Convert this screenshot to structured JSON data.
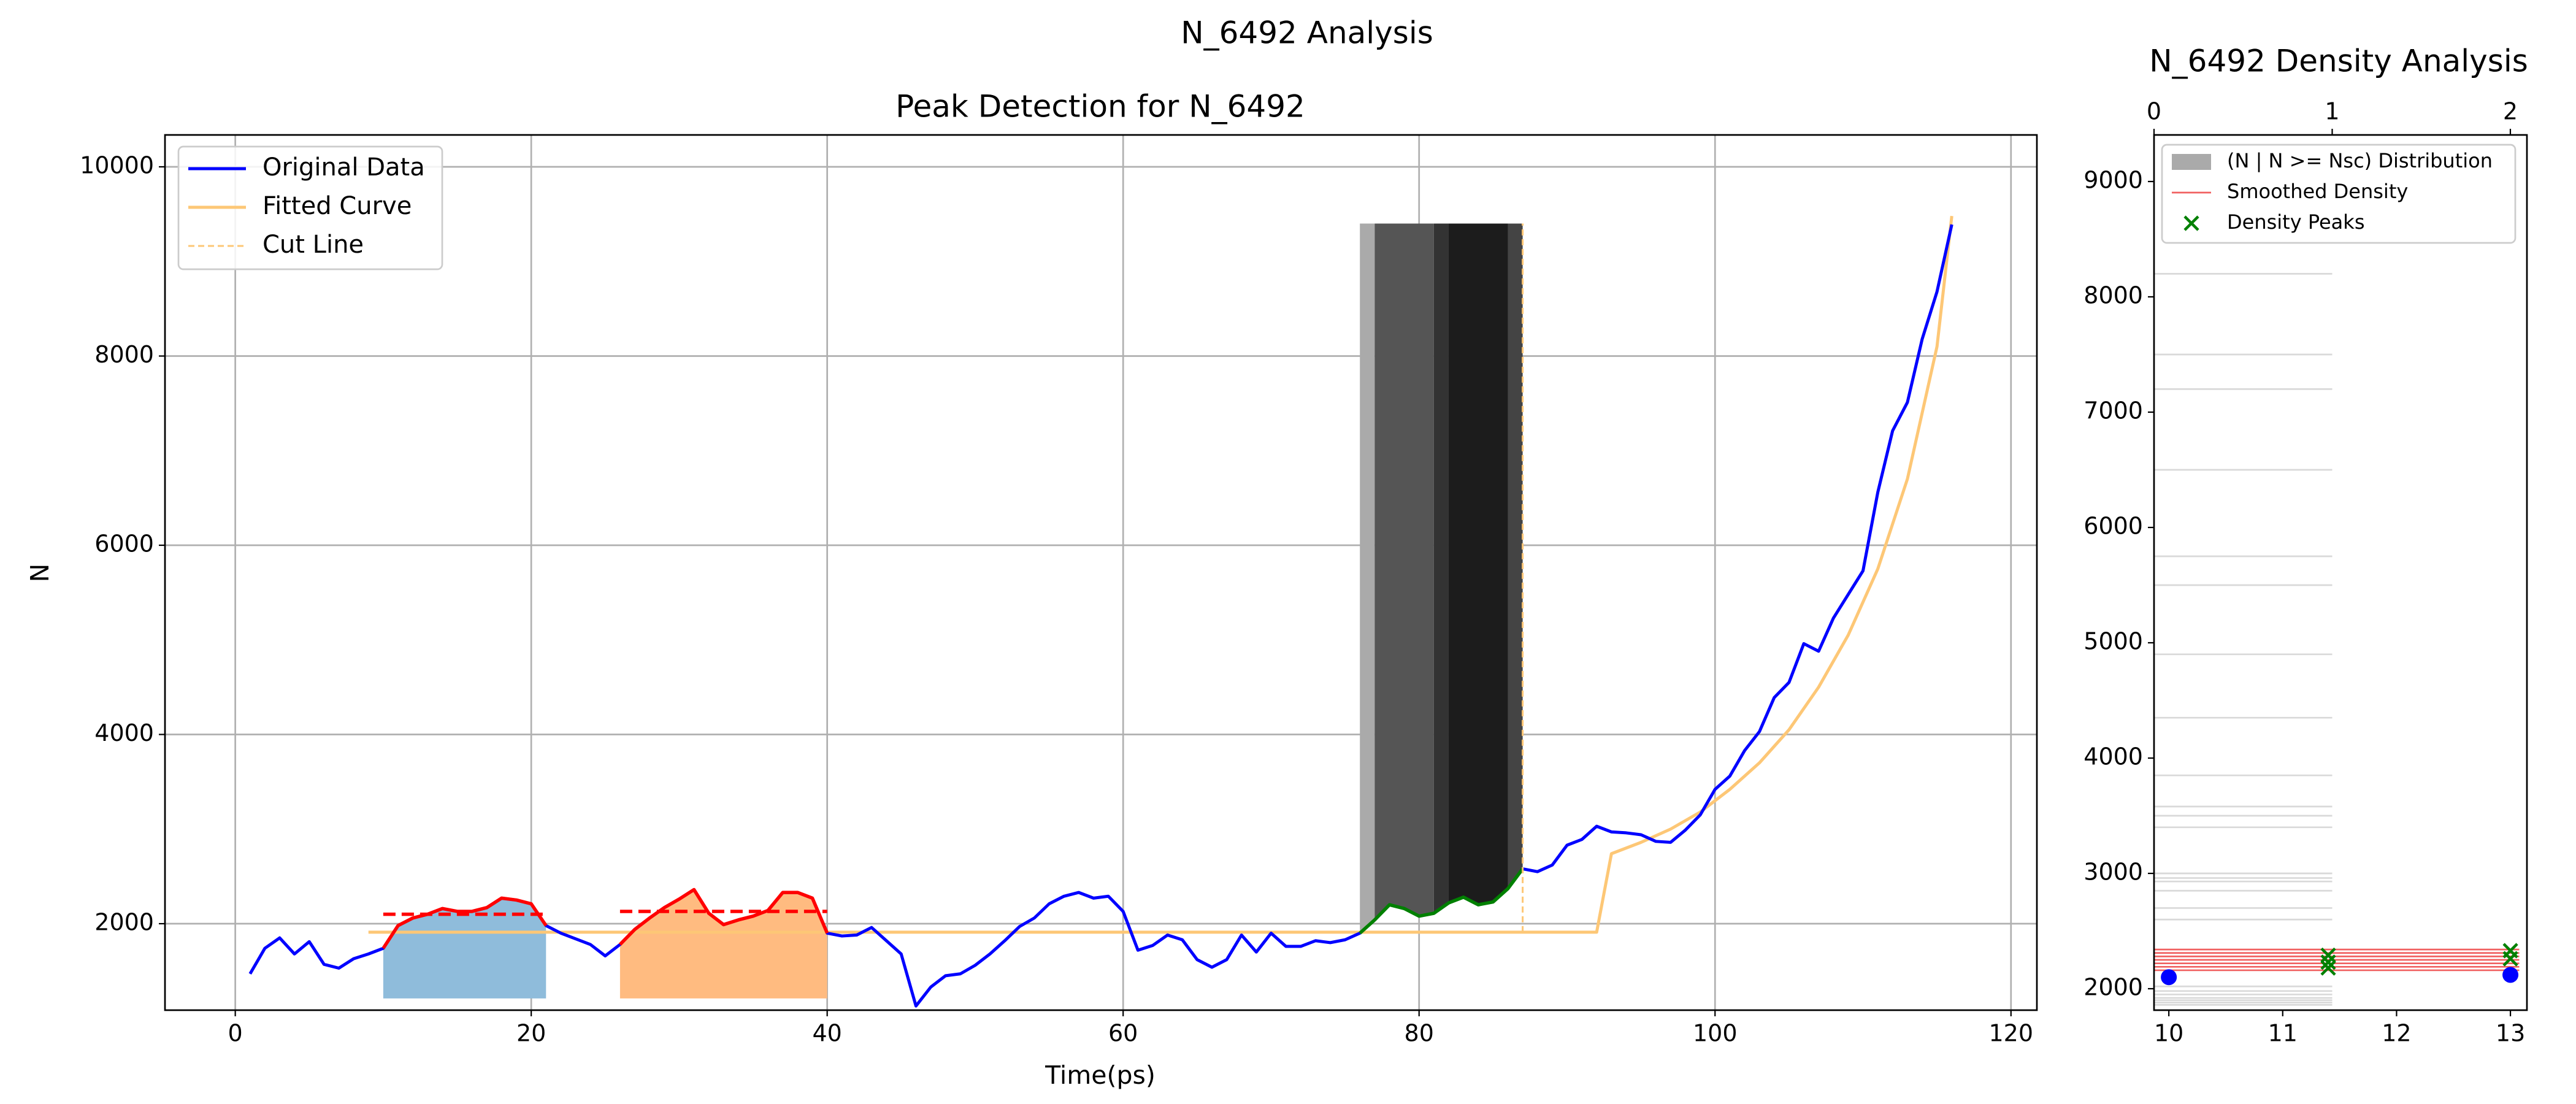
{
  "title": "N_6492 Analysis",
  "chart_data": [
    {
      "type": "line",
      "title": "Peak Detection for N_6492",
      "xlabel": "Time(ps)",
      "ylabel": "N",
      "xlim": [
        -4.75,
        121.75
      ],
      "ylim": [
        1086,
        10337
      ],
      "xticks": [
        0,
        20,
        40,
        60,
        80,
        100,
        120
      ],
      "yticks": [
        2000,
        4000,
        6000,
        8000,
        10000
      ],
      "grid": true,
      "legend": "upper left",
      "series": [
        {
          "name": "Original Data",
          "color": "#0000ff",
          "x": [
            1,
            2,
            3,
            4,
            5,
            6,
            7,
            8,
            9,
            10,
            11,
            12,
            13,
            14,
            15,
            16,
            17,
            18,
            19,
            20,
            21,
            22,
            23,
            24,
            25,
            26,
            27,
            28,
            29,
            30,
            31,
            32,
            33,
            34,
            35,
            36,
            37,
            38,
            39,
            40,
            41,
            42,
            43,
            44,
            45,
            46,
            47,
            48,
            49,
            50,
            51,
            52,
            53,
            54,
            55,
            56,
            57,
            58,
            59,
            60,
            61,
            62,
            63,
            64,
            65,
            66,
            67,
            68,
            69,
            70,
            71,
            72,
            73,
            74,
            75,
            76,
            77,
            78,
            79,
            80,
            81,
            82,
            83,
            84,
            85,
            86,
            87,
            88,
            89,
            90,
            91,
            92,
            93,
            94,
            95,
            96,
            97,
            98,
            99,
            100,
            101,
            102,
            103,
            104,
            105,
            106,
            107,
            108,
            109,
            110,
            111,
            112,
            113,
            114,
            115,
            116
          ],
          "values": [
            1470,
            1740,
            1850,
            1680,
            1810,
            1570,
            1530,
            1630,
            1680,
            1740,
            1980,
            2060,
            2100,
            2160,
            2130,
            2130,
            2170,
            2270,
            2250,
            2210,
            1980,
            1900,
            1840,
            1780,
            1660,
            1780,
            1940,
            2060,
            2170,
            2260,
            2360,
            2110,
            1990,
            2040,
            2080,
            2140,
            2330,
            2330,
            2270,
            1900,
            1870,
            1880,
            1960,
            1820,
            1680,
            1130,
            1330,
            1450,
            1470,
            1560,
            1680,
            1820,
            1970,
            2060,
            2210,
            2290,
            2330,
            2270,
            2290,
            2130,
            1720,
            1770,
            1880,
            1830,
            1620,
            1540,
            1620,
            1880,
            1700,
            1900,
            1760,
            1760,
            1820,
            1800,
            1830,
            1900,
            2040,
            2200,
            2160,
            2080,
            2110,
            2220,
            2280,
            2200,
            2230,
            2370,
            2580,
            2550,
            2620,
            2830,
            2890,
            3030,
            2970,
            2960,
            2940,
            2870,
            2860,
            2990,
            3150,
            3420,
            3560,
            3830,
            4030,
            4390,
            4550,
            4960,
            4880,
            5230,
            5480,
            5730,
            6560,
            7210,
            7510,
            8180,
            8680,
            9390
          ]
        },
        {
          "name": "Fitted Curve",
          "color": "#fdc776",
          "x": [
            9,
            92,
            93,
            95,
            97,
            99,
            101,
            103,
            105,
            107,
            109,
            111,
            113,
            115,
            116
          ],
          "values": [
            1910,
            1910,
            2740,
            2860,
            3000,
            3180,
            3420,
            3700,
            4050,
            4500,
            5050,
            5750,
            6700,
            8100,
            9480
          ]
        }
      ],
      "cut_line": {
        "name": "Cut Line",
        "color": "#fdc776",
        "x": 87,
        "y": [
          1910,
          9400
        ]
      },
      "peak_color": "#ff0000",
      "peaks": [
        {
          "x": [
            10,
            21
          ],
          "level": 2100,
          "base": 1210,
          "fill": "#8fbcdb"
        },
        {
          "x": [
            26,
            40
          ],
          "level": 2130,
          "base": 1210,
          "fill": "#ffbb80"
        }
      ],
      "highlight": {
        "x": [
          76,
          87
        ],
        "color": "#008000"
      },
      "band_top": 9400,
      "bands": [
        {
          "x": [
            76,
            77
          ],
          "color": "#aaaaaa"
        },
        {
          "x": [
            77,
            81
          ],
          "color": "#555555"
        },
        {
          "x": [
            81,
            82
          ],
          "color": "#333333"
        },
        {
          "x": [
            82,
            86
          ],
          "color": "#1c1c1c"
        },
        {
          "x": [
            86,
            87
          ],
          "color": "#444444"
        }
      ]
    },
    {
      "type": "density",
      "title": "N_6492 Density Analysis",
      "xlim": [
        9.87,
        13.145
      ],
      "xticks": [
        10,
        11,
        12,
        13
      ],
      "x2lim": [
        0,
        2.093
      ],
      "x2ticks": [
        0,
        1,
        2
      ],
      "ylim": [
        1814,
        9404
      ],
      "yticks": [
        2000,
        3000,
        4000,
        5000,
        6000,
        7000,
        8000,
        9000
      ],
      "legend": "upper left",
      "distribution": {
        "name": "(N | N >= Nsc) Distribution",
        "color": "#aaaaaa",
        "y": [
          1860,
          1880,
          1900,
          1920,
          1950,
          1980,
          2020,
          2600,
          2700,
          2850,
          2930,
          2960,
          3000,
          3400,
          3500,
          3580,
          3850,
          4350,
          4900,
          5500,
          5750,
          6500,
          7200,
          7500,
          8200
        ],
        "values": [
          1,
          1,
          1,
          1,
          1,
          1,
          1,
          1,
          1,
          1,
          1,
          1,
          1,
          1,
          1,
          1,
          1,
          1,
          1,
          1,
          1,
          1,
          1,
          1,
          1
        ]
      },
      "smoothed": {
        "name": "Smoothed Density",
        "color": "#f06060",
        "y": [
          2160,
          2190,
          2220,
          2250,
          2280,
          2310,
          2340
        ],
        "values": [
          2.05,
          2.05,
          2.05,
          2.05,
          2.05,
          2.05,
          2.05
        ]
      },
      "peaks": {
        "name": "Density Peaks",
        "color": "#008000",
        "x": [
          11.4,
          11.4,
          11.4,
          13,
          13
        ],
        "y": [
          2180,
          2230,
          2290,
          2260,
          2330
        ]
      },
      "markers": {
        "color": "#0000ff",
        "x": [
          10,
          13
        ],
        "y": [
          2100,
          2120
        ]
      }
    }
  ]
}
